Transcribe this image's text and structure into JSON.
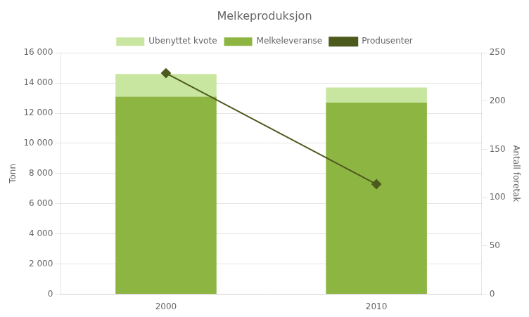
{
  "chart_data": {
    "type": "bar",
    "title": "Melkeproduksjon",
    "categories": [
      "2000",
      "2010"
    ],
    "series": [
      {
        "name": "Ubenyttet kvote",
        "type": "bar",
        "color": "#c8e6a0",
        "values": [
          1500,
          1000
        ]
      },
      {
        "name": "Melkeleveranse",
        "type": "bar",
        "color": "#8db542",
        "values": [
          13100,
          12700
        ]
      },
      {
        "name": "Produsenter",
        "type": "line",
        "color": "#4d5a1e",
        "marker": "diamond",
        "axis": "y2",
        "values": [
          229,
          114
        ]
      }
    ],
    "stacked": true,
    "ylabel": "Tonn",
    "y2label": "Antall foretak",
    "ylim": [
      0,
      16000
    ],
    "yticks": [
      0,
      {
        "value": 2000,
        "label": "2 000"
      },
      {
        "value": 4000,
        "label": "4 000"
      },
      {
        "value": 6000,
        "label": "6 000"
      },
      {
        "value": 8000,
        "label": "8 000"
      },
      {
        "value": 10000,
        "label": "10 000"
      },
      {
        "value": 12000,
        "label": "12 000"
      },
      {
        "value": 14000,
        "label": "14 000"
      },
      {
        "value": 16000,
        "label": "16 000"
      }
    ],
    "y2lim": [
      0,
      250
    ],
    "y2ticks": [
      0,
      50,
      100,
      150,
      200,
      250
    ],
    "grid": true,
    "legend": "top"
  }
}
